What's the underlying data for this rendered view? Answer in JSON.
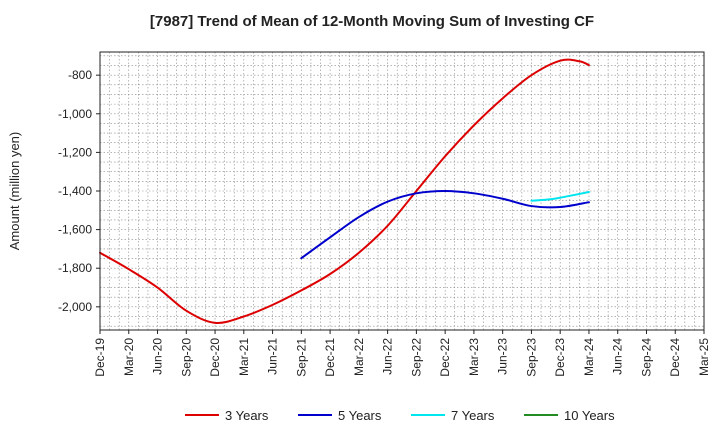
{
  "chart_data": {
    "type": "line",
    "title": "[7987]  Trend of Mean of 12-Month Moving Sum of Investing CF",
    "xlabel": "",
    "ylabel": "Amount (million yen)",
    "ylim": [
      -2120,
      -680
    ],
    "yticks": [
      -800,
      -1000,
      -1200,
      -1400,
      -1600,
      -1800,
      -2000
    ],
    "ytick_labels": [
      "-800",
      "-1,000",
      "-1,200",
      "-1,400",
      "-1,600",
      "-1,800",
      "-2,000"
    ],
    "x_start": "Dec-19",
    "x_months": 63,
    "xtick_labels": [
      "Dec-19",
      "Mar-20",
      "Jun-20",
      "Sep-20",
      "Dec-20",
      "Mar-21",
      "Jun-21",
      "Sep-21",
      "Dec-21",
      "Mar-22",
      "Jun-22",
      "Sep-22",
      "Dec-22",
      "Mar-23",
      "Jun-23",
      "Sep-23",
      "Dec-23",
      "Mar-24",
      "Jun-24",
      "Sep-24",
      "Dec-24",
      "Mar-25"
    ],
    "grid": true,
    "legend_position": "bottom",
    "series": [
      {
        "name": "3 Years",
        "color": "#dd0000",
        "x": [
          0,
          3,
          6,
          9,
          12,
          15,
          18,
          21,
          24,
          27,
          30,
          33,
          36,
          39,
          42,
          45,
          48,
          50,
          51
        ],
        "y": [
          -1720,
          -1805,
          -1900,
          -2020,
          -2083,
          -2050,
          -1990,
          -1915,
          -1830,
          -1720,
          -1580,
          -1400,
          -1220,
          -1060,
          -920,
          -800,
          -725,
          -728,
          -748
        ]
      },
      {
        "name": "5 Years",
        "color": "#0000cc",
        "x": [
          21,
          24,
          27,
          30,
          33,
          36,
          39,
          42,
          45,
          48,
          51
        ],
        "y": [
          -1748,
          -1640,
          -1535,
          -1455,
          -1412,
          -1400,
          -1412,
          -1440,
          -1478,
          -1483,
          -1458
        ]
      },
      {
        "name": "7 Years",
        "color": "#00e5ee",
        "x": [
          45,
          47,
          49,
          51
        ],
        "y": [
          -1450,
          -1443,
          -1425,
          -1405
        ]
      },
      {
        "name": "10 Years",
        "color": "#228b22",
        "x": [],
        "y": []
      }
    ]
  }
}
